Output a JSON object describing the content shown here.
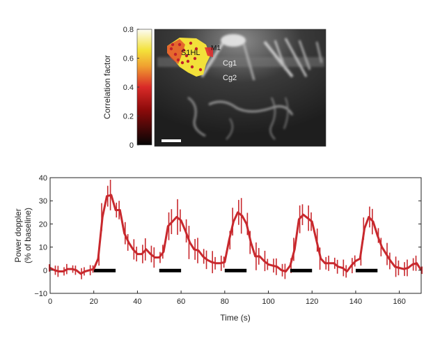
{
  "chart_data": [
    {
      "type": "heatmap",
      "title": "",
      "colorbar": {
        "label": "Correlation factor",
        "range": [
          0,
          0.8
        ],
        "ticks": [
          "0",
          "0.2",
          "0.4",
          "0.6",
          "0.8"
        ],
        "colormap": [
          "#000000",
          "#8b0000",
          "#e0202a",
          "#f08a20",
          "#f5e23a",
          "#ffffff"
        ]
      },
      "annotations": [
        "S1HL",
        "M1",
        "Cg1",
        "Cg2"
      ],
      "scale_bar": true
    },
    {
      "type": "line",
      "xlabel": "Time (s)",
      "ylabel": "Power doppler",
      "ylabel2": "(% of baseline)",
      "xlim": [
        0,
        170
      ],
      "ylim": [
        -10,
        40
      ],
      "xticks": [
        "0",
        "20",
        "40",
        "60",
        "80",
        "100",
        "120",
        "140",
        "160"
      ],
      "yticks": [
        "−10",
        "0",
        "10",
        "20",
        "30",
        "40"
      ],
      "series_color": "#c8282d",
      "x": [
        0,
        2,
        4,
        6,
        8,
        10,
        12,
        14,
        16,
        18,
        20,
        22,
        24,
        26,
        28,
        30,
        32,
        34,
        36,
        38,
        40,
        42,
        44,
        46,
        48,
        50,
        52,
        54,
        56,
        58,
        60,
        62,
        64,
        66,
        68,
        70,
        72,
        74,
        76,
        78,
        80,
        82,
        84,
        86,
        88,
        90,
        92,
        94,
        96,
        98,
        100,
        102,
        104,
        106,
        108,
        110,
        112,
        114,
        116,
        118,
        120,
        122,
        124,
        126,
        128,
        130,
        132,
        134,
        136,
        138,
        140,
        142,
        144,
        146,
        148,
        150,
        152,
        154,
        156,
        158,
        160,
        162,
        164,
        166,
        168,
        170
      ],
      "values": [
        1,
        0,
        -0.5,
        -0.5,
        0.5,
        0.5,
        0,
        -1.5,
        -0.5,
        0,
        0.5,
        5,
        23,
        32,
        32.5,
        26,
        26,
        16,
        12,
        9,
        7,
        7,
        9,
        7,
        5.5,
        5.5,
        8,
        19,
        21,
        23,
        21.5,
        17,
        12,
        9,
        8.5,
        6,
        4.5,
        3.5,
        3,
        3,
        3.5,
        13,
        21,
        25,
        23.5,
        20,
        12,
        6,
        6,
        4,
        2.5,
        2,
        1.5,
        0,
        -0.5,
        2,
        9,
        22,
        24,
        22.5,
        21,
        13,
        5,
        3,
        3,
        3,
        1.5,
        1,
        -0.5,
        2,
        4,
        5,
        18,
        23,
        21,
        15,
        10,
        7,
        4,
        1.5,
        1,
        0.5,
        1,
        2.5,
        3,
        0
      ],
      "errors": [
        2,
        2,
        2,
        2,
        2,
        2,
        2,
        2,
        2,
        2,
        2,
        3,
        5,
        5,
        6,
        4,
        4,
        4,
        4,
        4,
        4,
        4,
        4,
        4,
        4,
        3,
        3,
        5,
        6,
        7,
        6,
        5,
        6,
        5,
        5,
        4,
        4,
        4,
        3,
        3,
        3,
        4,
        5,
        6,
        7,
        6,
        5,
        5,
        4,
        4,
        3,
        3,
        3,
        3,
        3,
        4,
        5,
        5,
        5,
        5,
        5,
        5,
        4,
        3,
        3,
        3,
        3,
        3,
        3,
        3,
        3,
        3,
        4,
        5,
        5,
        4,
        4,
        4,
        4,
        4,
        4,
        3,
        3,
        3,
        3,
        2
      ],
      "stimulus_periods": [
        [
          20,
          30
        ],
        [
          50,
          60
        ],
        [
          80,
          90
        ],
        [
          110,
          120
        ],
        [
          140,
          150
        ]
      ]
    }
  ]
}
